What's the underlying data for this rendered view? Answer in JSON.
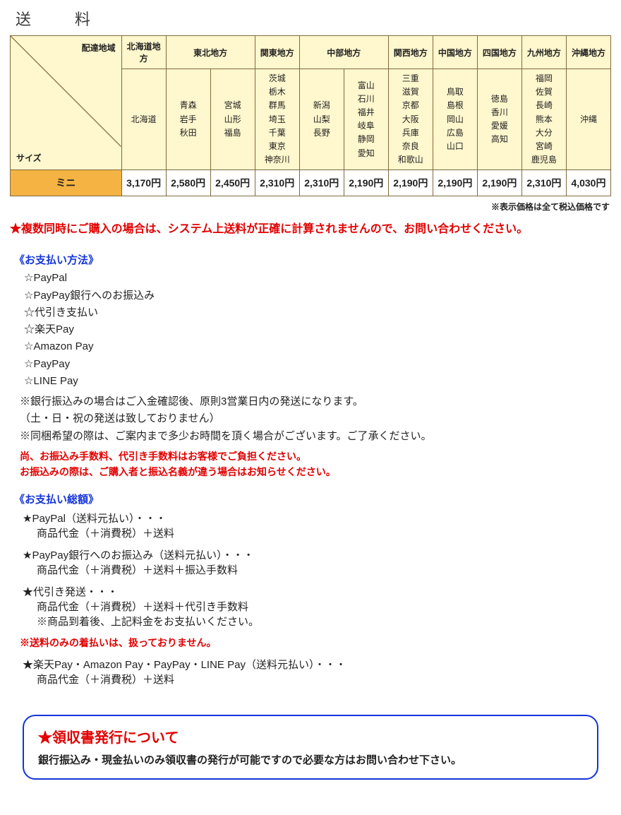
{
  "title": "送　料",
  "table": {
    "cornerAreaLabel": "配達地域",
    "cornerSizeLabel": "サイズ",
    "headers": [
      "北海道地方",
      "東北地方",
      "関東地方",
      "中部地方",
      "関西地方",
      "中国地方",
      "四国地方",
      "九州地方",
      "沖縄地方"
    ],
    "headerSpans": [
      1,
      2,
      1,
      2,
      1,
      1,
      1,
      1,
      1
    ],
    "prefectures": [
      [
        "北海道"
      ],
      [
        "青森",
        "岩手",
        "秋田"
      ],
      [
        "宮城",
        "山形",
        "福島"
      ],
      [
        "茨城",
        "栃木",
        "群馬",
        "埼玉",
        "千葉",
        "東京",
        "神奈川"
      ],
      [
        "新潟",
        "山梨",
        "長野"
      ],
      [
        "富山",
        "石川",
        "福井",
        "岐阜",
        "静岡",
        "愛知"
      ],
      [
        "三重",
        "滋賀",
        "京都",
        "大阪",
        "兵庫",
        "奈良",
        "和歌山"
      ],
      [
        "鳥取",
        "島根",
        "岡山",
        "広島",
        "山口"
      ],
      [
        "徳島",
        "香川",
        "愛媛",
        "高知"
      ],
      [
        "福岡",
        "佐賀",
        "長崎",
        "熊本",
        "大分",
        "宮崎",
        "鹿児島"
      ],
      [
        "沖縄"
      ]
    ],
    "sizeLabel": "ミニ",
    "prices": [
      "3,170円",
      "2,580円",
      "2,450円",
      "2,310円",
      "2,310円",
      "2,190円",
      "2,190円",
      "2,190円",
      "2,190円",
      "2,310円",
      "4,030円"
    ]
  },
  "taxNote": "※表示価格は全て税込価格です",
  "multiBuyWarning": "★複数同時にご購入の場合は、システム上送料が正確に計算されませんので、お問い合わせください。",
  "payment": {
    "title": "《お支払い方法》",
    "methods": [
      "☆PayPal",
      "☆PayPay銀行へのお振込み",
      "☆代引き支払い",
      "☆楽天Pay",
      "☆Amazon Pay",
      "☆PayPay",
      "☆LINE Pay"
    ],
    "notes": [
      "※銀行振込みの場合はご入金確認後、原則3営業日内の発送になります。",
      "（土・日・祝の発送は致しておりません）",
      "※同梱希望の際は、ご案内まで多少お時間を頂く場合がございます。ご了承ください。"
    ],
    "redNotes": [
      "尚、お振込み手数料、代引き手数料はお客様でご負担ください。",
      "お振込みの際は、ご購入者と振込名義が違う場合はお知らせください。"
    ]
  },
  "total": {
    "title": "《お支払い総額》",
    "items": [
      {
        "star": "★PayPal（送料元払い）・・・",
        "detail": "商品代金（＋消費税）＋送料"
      },
      {
        "star": "★PayPay銀行へのお振込み（送料元払い）・・・",
        "detail": "商品代金（＋消費税）＋送料＋振込手数料"
      },
      {
        "star": "★代引き発送・・・",
        "detail": "商品代金（＋消費税）＋送料＋代引き手数料",
        "note": "※商品到着後、上記料金をお支払いください。"
      }
    ],
    "redNote": "※送料のみの着払いは、扱っておりません。",
    "items2": [
      {
        "star": "★楽天Pay・Amazon Pay・PayPay・LINE Pay（送料元払い）・・・",
        "detail": "商品代金（＋消費税）＋送料"
      }
    ]
  },
  "receipt": {
    "title": "★領収書発行について",
    "body": "銀行振込み・現金払いのみ領収書の発行が可能ですので必要な方はお問い合わせ下さい。"
  },
  "colors": {
    "headerBg": "#fff7cd",
    "border": "#806a3e",
    "sizeRowBg": "#f4b342",
    "blue": "#1434d9",
    "red": "#e20000"
  }
}
